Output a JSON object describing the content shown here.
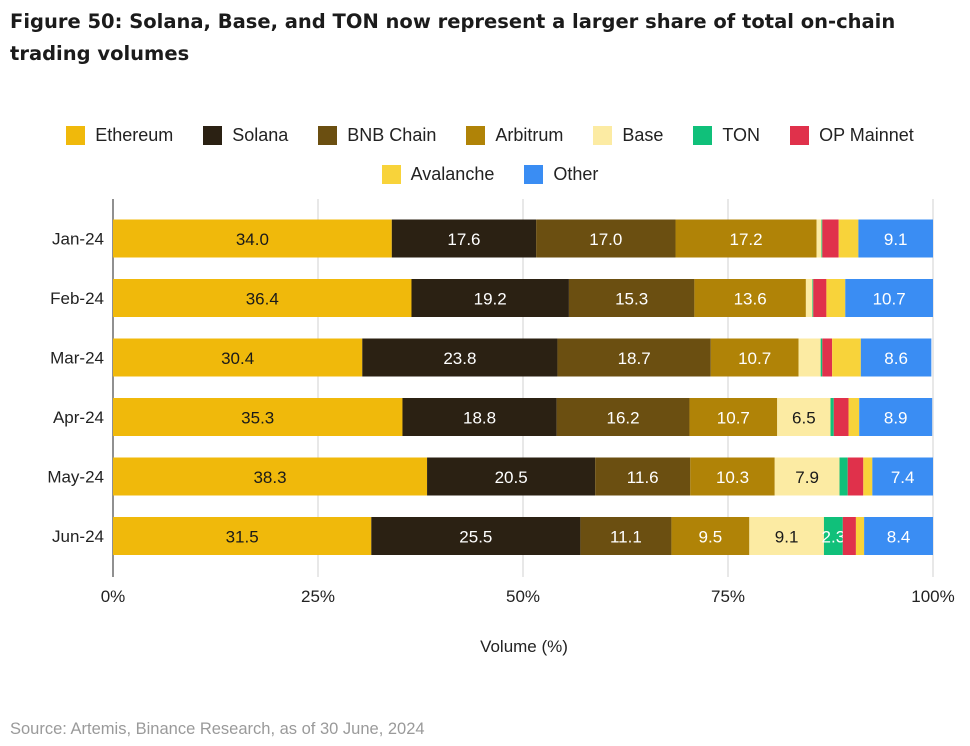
{
  "title": "Figure 50: Solana, Base, and TON now represent a larger share of total on-chain trading volumes",
  "source": "Source: Artemis, Binance Research, as of 30 June, 2024",
  "chart_data": {
    "type": "bar",
    "orientation": "horizontal",
    "stacked": true,
    "title": "Figure 50: Solana, Base, and TON now represent a larger share of total on-chain trading volumes",
    "xlabel": "Volume (%)",
    "ylabel": "",
    "xlim": [
      0,
      100
    ],
    "xticks": [
      "0%",
      "25%",
      "50%",
      "75%",
      "100%"
    ],
    "legend_position": "top",
    "grid": true,
    "categories": [
      "Jan-24",
      "Feb-24",
      "Mar-24",
      "Apr-24",
      "May-24",
      "Jun-24"
    ],
    "series": [
      {
        "name": "Ethereum",
        "color": "#F0B90B",
        "label_color": "#1a1a1a",
        "values": [
          34.0,
          36.4,
          30.4,
          35.3,
          38.3,
          31.5
        ],
        "labels": [
          "34.0",
          "36.4",
          "30.4",
          "35.3",
          "38.3",
          "31.5"
        ]
      },
      {
        "name": "Solana",
        "color": "#2B2113",
        "label_color": "#ffffff",
        "values": [
          17.6,
          19.2,
          23.8,
          18.8,
          20.5,
          25.5
        ],
        "labels": [
          "17.6",
          "19.2",
          "23.8",
          "18.8",
          "20.5",
          "25.5"
        ]
      },
      {
        "name": "BNB Chain",
        "color": "#6B4F11",
        "label_color": "#ffffff",
        "values": [
          17.0,
          15.3,
          18.7,
          16.2,
          11.6,
          11.1
        ],
        "labels": [
          "17.0",
          "15.3",
          "18.7",
          "16.2",
          "11.6",
          "11.1"
        ]
      },
      {
        "name": "Arbitrum",
        "color": "#B08307",
        "label_color": "#ffffff",
        "values": [
          17.2,
          13.6,
          10.7,
          10.7,
          10.3,
          9.5
        ],
        "labels": [
          "17.2",
          "13.6",
          "10.7",
          "10.7",
          "10.3",
          "9.5"
        ]
      },
      {
        "name": "Base",
        "color": "#FCEBA3",
        "label_color": "#1a1a1a",
        "values": [
          0.6,
          0.8,
          2.7,
          6.5,
          7.9,
          9.1
        ],
        "labels": [
          "",
          "",
          "",
          "6.5",
          "7.9",
          "9.1"
        ]
      },
      {
        "name": "TON",
        "color": "#10C07A",
        "label_color": "#ffffff",
        "values": [
          0.1,
          0.1,
          0.2,
          0.4,
          1.0,
          2.3
        ],
        "labels": [
          "",
          "",
          "",
          "",
          "",
          "2.3"
        ]
      },
      {
        "name": "OP Mainnet",
        "color": "#E0314B",
        "label_color": "#ffffff",
        "values": [
          2.0,
          1.6,
          1.2,
          1.8,
          1.9,
          1.6
        ],
        "labels": [
          "",
          "",
          "",
          "",
          "",
          ""
        ]
      },
      {
        "name": "Avalanche",
        "color": "#F8D33A",
        "label_color": "#1a1a1a",
        "values": [
          2.4,
          2.3,
          3.5,
          1.3,
          1.1,
          1.0
        ],
        "labels": [
          "",
          "",
          "",
          "",
          "",
          ""
        ]
      },
      {
        "name": "Other",
        "color": "#3A8DF3",
        "label_color": "#ffffff",
        "values": [
          9.1,
          10.7,
          8.6,
          8.9,
          7.4,
          8.4
        ],
        "labels": [
          "9.1",
          "10.7",
          "8.6",
          "8.9",
          "7.4",
          "8.4"
        ]
      }
    ]
  }
}
